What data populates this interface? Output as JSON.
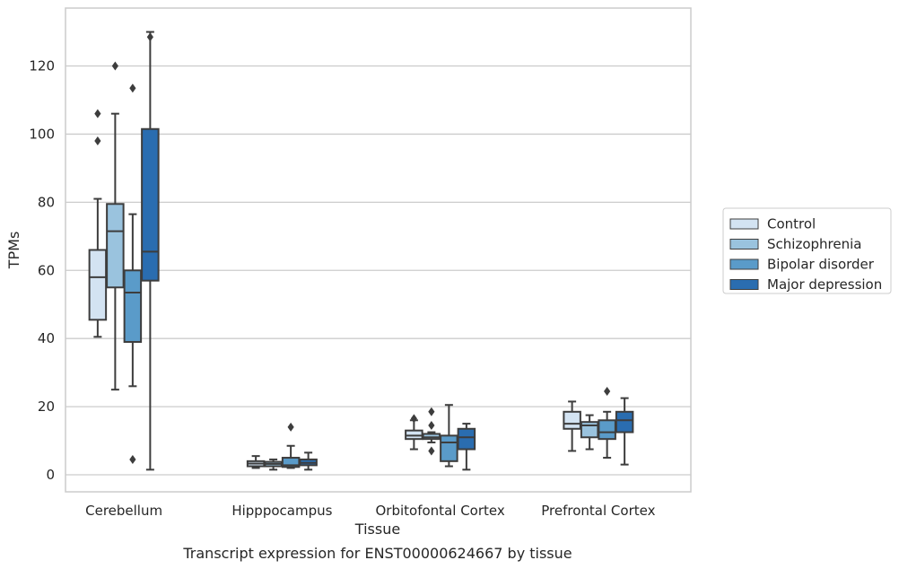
{
  "chart_data": {
    "type": "box",
    "title": "",
    "caption": "Transcript expression for ENST00000624667 by tissue",
    "xlabel": "Tissue",
    "ylabel": "TPMs",
    "ylim": [
      -5,
      137
    ],
    "yticks": [
      0,
      20,
      40,
      60,
      80,
      100,
      120
    ],
    "grid": true,
    "legend_position": "right",
    "categories": [
      "Cerebellum",
      "Hipppocampus",
      "Orbitofontal Cortex",
      "Prefrontal Cortex"
    ],
    "series": [
      {
        "name": "Control",
        "color": "#d3e3f2",
        "boxes": [
          {
            "whisker_low": 40.5,
            "q1": 45.5,
            "median": 58,
            "q3": 66,
            "whisker_high": 81,
            "outliers": [
              98,
              106
            ]
          },
          {
            "whisker_low": 2,
            "q1": 2.5,
            "median": 3.3,
            "q3": 4,
            "whisker_high": 5.5,
            "outliers": []
          },
          {
            "whisker_low": 7.5,
            "q1": 10.5,
            "median": 11.5,
            "q3": 13,
            "whisker_high": 16,
            "outliers": [
              16.5
            ]
          },
          {
            "whisker_low": 7,
            "q1": 13.5,
            "median": 15,
            "q3": 18.5,
            "whisker_high": 21.5,
            "outliers": []
          }
        ]
      },
      {
        "name": "Schizophrenia",
        "color": "#9ac3de",
        "boxes": [
          {
            "whisker_low": 25,
            "q1": 55,
            "median": 71.5,
            "q3": 79.5,
            "whisker_high": 106,
            "outliers": [
              120
            ]
          },
          {
            "whisker_low": 1.5,
            "q1": 2.5,
            "median": 3.2,
            "q3": 3.8,
            "whisker_high": 4.5,
            "outliers": []
          },
          {
            "whisker_low": 9.5,
            "q1": 10.5,
            "median": 11,
            "q3": 12,
            "whisker_high": 12.5,
            "outliers": [
              7,
              14.5,
              18.5
            ]
          },
          {
            "whisker_low": 7.5,
            "q1": 11,
            "median": 14.5,
            "q3": 15.5,
            "whisker_high": 17.5,
            "outliers": []
          }
        ]
      },
      {
        "name": "Bipolar disorder",
        "color": "#5a9bc9",
        "boxes": [
          {
            "whisker_low": 26,
            "q1": 39,
            "median": 53.5,
            "q3": 60,
            "whisker_high": 76.5,
            "outliers": [
              4.5,
              113.5
            ]
          },
          {
            "whisker_low": 2,
            "q1": 2.3,
            "median": 2.8,
            "q3": 5,
            "whisker_high": 8.5,
            "outliers": [
              14
            ]
          },
          {
            "whisker_low": 2.5,
            "q1": 4,
            "median": 9.5,
            "q3": 11.5,
            "whisker_high": 20.5,
            "outliers": []
          },
          {
            "whisker_low": 5,
            "q1": 10.5,
            "median": 12.5,
            "q3": 16,
            "whisker_high": 18.5,
            "outliers": [
              24.5
            ]
          }
        ]
      },
      {
        "name": "Major depression",
        "color": "#2a6db0",
        "boxes": [
          {
            "whisker_low": 1.5,
            "q1": 57,
            "median": 65.5,
            "q3": 101.5,
            "whisker_high": 130,
            "outliers": [
              128.5
            ]
          },
          {
            "whisker_low": 1.5,
            "q1": 2.8,
            "median": 3.5,
            "q3": 4.5,
            "whisker_high": 6.5,
            "outliers": []
          },
          {
            "whisker_low": 1.5,
            "q1": 7.5,
            "median": 11,
            "q3": 13.5,
            "whisker_high": 15,
            "outliers": []
          },
          {
            "whisker_low": 3,
            "q1": 12.5,
            "median": 16,
            "q3": 18.5,
            "whisker_high": 22.5,
            "outliers": []
          }
        ]
      }
    ]
  }
}
